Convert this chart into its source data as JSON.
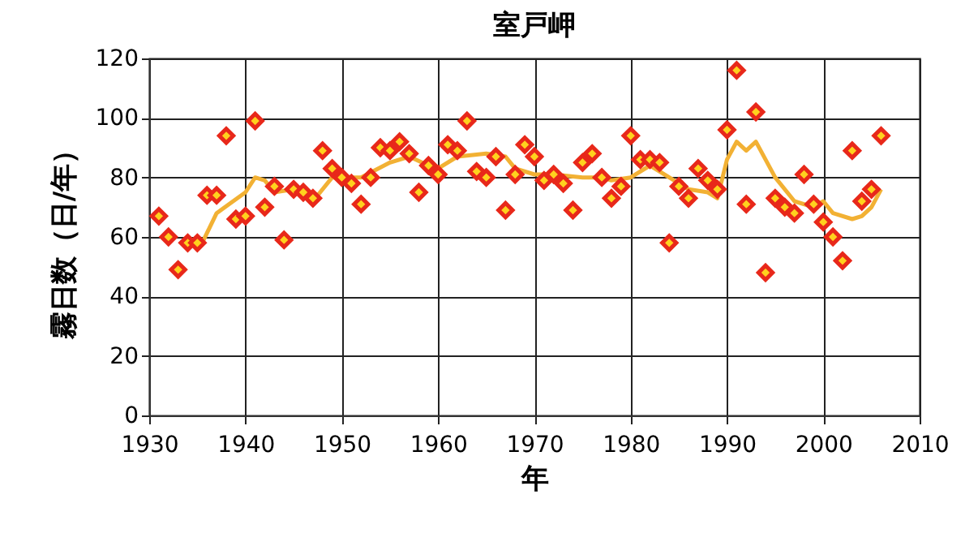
{
  "chart_data": {
    "type": "scatter",
    "title": "室戸岬",
    "xlabel": "年",
    "ylabel": "霧日数（日/年）",
    "xlim": [
      1930,
      2010
    ],
    "xticks": [
      1930,
      1940,
      1950,
      1960,
      1970,
      1980,
      1990,
      2000,
      2010
    ],
    "ylim": [
      0,
      120
    ],
    "yticks": [
      0,
      20,
      40,
      60,
      80,
      100,
      120
    ],
    "grid": true,
    "marker": "diamond",
    "series": [
      {
        "color": "#e8281a",
        "x": [
          1931,
          1932,
          1933,
          1934,
          1935,
          1936,
          1937,
          1938,
          1939,
          1940,
          1941,
          1942,
          1943,
          1944,
          1945,
          1946,
          1947,
          1948,
          1949,
          1950,
          1951,
          1952,
          1953,
          1954,
          1955,
          1956,
          1957,
          1958,
          1959,
          1960,
          1961,
          1962,
          1963,
          1964,
          1965,
          1966,
          1967,
          1968,
          1969,
          1970,
          1971,
          1972,
          1973,
          1974,
          1975,
          1976,
          1977,
          1978,
          1979,
          1980,
          1981,
          1982,
          1983,
          1984,
          1985,
          1986,
          1987,
          1988,
          1989,
          1990,
          1991,
          1992,
          1993,
          1994,
          1995,
          1996,
          1997,
          1998,
          1999,
          2000,
          2001,
          2002,
          2003,
          2004,
          2005,
          2006
        ],
        "values": [
          67,
          60,
          49,
          58,
          58,
          74,
          74,
          94,
          66,
          67,
          99,
          70,
          77,
          59,
          76,
          75,
          73,
          89,
          83,
          80,
          78,
          71,
          80,
          90,
          89,
          92,
          88,
          75,
          84,
          81,
          91,
          89,
          99,
          82,
          80,
          87,
          69,
          81,
          91,
          87,
          79,
          81,
          78,
          69,
          85,
          88,
          80,
          73,
          77,
          94,
          86,
          86,
          85,
          58,
          77,
          73,
          83,
          79,
          76,
          96,
          116,
          71,
          102,
          48,
          73,
          70,
          68,
          81,
          71,
          65,
          60,
          52,
          89,
          72,
          76,
          94
        ]
      },
      {
        "type": "line",
        "marker": "none",
        "color": "#f2b134",
        "x": [
          1935.5,
          1937,
          1940,
          1941,
          1942,
          1943,
          1945,
          1947,
          1949,
          1950,
          1952,
          1955,
          1957,
          1959,
          1960,
          1962,
          1965,
          1967,
          1968,
          1970,
          1972,
          1975,
          1977,
          1978,
          1980,
          1982,
          1984,
          1986,
          1988,
          1989,
          1990,
          1991,
          1992,
          1993,
          1995,
          1997,
          1999,
          2000,
          2001,
          2003,
          2004,
          2005,
          2006
        ],
        "values": [
          58,
          68,
          75,
          80,
          79,
          75,
          76,
          72,
          80,
          80,
          80,
          85,
          87,
          84,
          83,
          87,
          88,
          87,
          83,
          81,
          81,
          80,
          80,
          79,
          80,
          84,
          80,
          76,
          75,
          73,
          86,
          92,
          89,
          92,
          80,
          72,
          70,
          72,
          68,
          66,
          67,
          70,
          76
        ]
      }
    ]
  }
}
